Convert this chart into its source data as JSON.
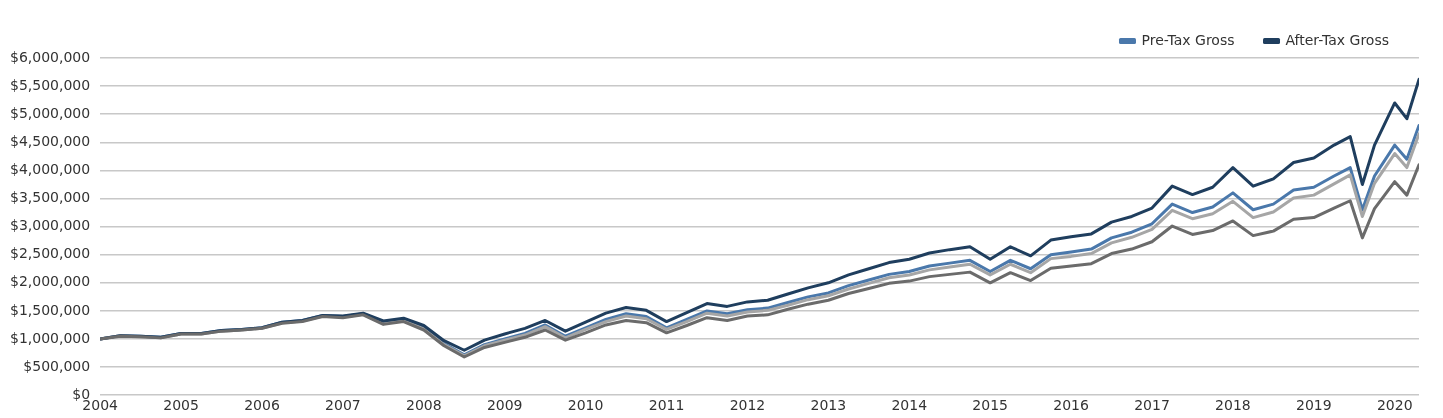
{
  "chart_data": {
    "type": "line",
    "x": [
      2004,
      2004.25,
      2004.5,
      2004.75,
      2005,
      2005.25,
      2005.5,
      2005.75,
      2006,
      2006.25,
      2006.5,
      2006.75,
      2007,
      2007.25,
      2007.5,
      2007.75,
      2008,
      2008.25,
      2008.5,
      2008.75,
      2009,
      2009.25,
      2009.5,
      2009.75,
      2010,
      2010.25,
      2010.5,
      2010.75,
      2011,
      2011.25,
      2011.5,
      2011.75,
      2012,
      2012.25,
      2012.5,
      2012.75,
      2013,
      2013.25,
      2013.5,
      2013.75,
      2014,
      2014.25,
      2014.5,
      2014.75,
      2015,
      2015.25,
      2015.5,
      2015.75,
      2016,
      2016.25,
      2016.5,
      2016.75,
      2017,
      2017.25,
      2017.5,
      2017.75,
      2018,
      2018.25,
      2018.5,
      2018.75,
      2019,
      2019.25,
      2019.45,
      2019.6,
      2019.75,
      2020,
      2020.15,
      2020.3
    ],
    "series": [
      {
        "name": "Pre-Tax Gross",
        "color": "#4a78ab",
        "values": [
          1000000,
          1060000,
          1050000,
          1030000,
          1100000,
          1100000,
          1150000,
          1170000,
          1200000,
          1300000,
          1330000,
          1420000,
          1400000,
          1450000,
          1300000,
          1350000,
          1200000,
          920000,
          720000,
          900000,
          1000000,
          1100000,
          1250000,
          1050000,
          1200000,
          1350000,
          1450000,
          1400000,
          1200000,
          1350000,
          1500000,
          1450000,
          1520000,
          1550000,
          1650000,
          1750000,
          1820000,
          1950000,
          2050000,
          2150000,
          2200000,
          2300000,
          2350000,
          2400000,
          2200000,
          2400000,
          2250000,
          2500000,
          2550000,
          2600000,
          2800000,
          2900000,
          3050000,
          3400000,
          3250000,
          3350000,
          3600000,
          3300000,
          3400000,
          3650000,
          3700000,
          3900000,
          4050000,
          3300000,
          3900000,
          4450000,
          4200000,
          4800000
        ]
      },
      {
        "color": "#a6a6a6",
        "values": [
          1000000,
          1060000,
          1040000,
          1020000,
          1090000,
          1090000,
          1140000,
          1160000,
          1190000,
          1290000,
          1320000,
          1410000,
          1390000,
          1440000,
          1280000,
          1330000,
          1180000,
          900000,
          700000,
          880000,
          980000,
          1070000,
          1220000,
          1020000,
          1170000,
          1310000,
          1410000,
          1360000,
          1170000,
          1310000,
          1460000,
          1410000,
          1480000,
          1510000,
          1600000,
          1700000,
          1770000,
          1890000,
          1990000,
          2090000,
          2140000,
          2230000,
          2280000,
          2330000,
          2140000,
          2330000,
          2180000,
          2430000,
          2470000,
          2520000,
          2710000,
          2810000,
          2950000,
          3290000,
          3140000,
          3230000,
          3450000,
          3160000,
          3260000,
          3510000,
          3560000,
          3760000,
          3920000,
          3180000,
          3770000,
          4300000,
          4050000,
          4650000
        ]
      },
      {
        "name": "After-Tax Gross",
        "color": "#1f3e5e",
        "values": [
          1000000,
          1060000,
          1050000,
          1030000,
          1100000,
          1100000,
          1150000,
          1170000,
          1200000,
          1300000,
          1330000,
          1420000,
          1410000,
          1460000,
          1320000,
          1370000,
          1240000,
          970000,
          800000,
          980000,
          1090000,
          1190000,
          1330000,
          1140000,
          1300000,
          1460000,
          1560000,
          1510000,
          1310000,
          1470000,
          1630000,
          1580000,
          1660000,
          1690000,
          1800000,
          1910000,
          2000000,
          2140000,
          2250000,
          2360000,
          2420000,
          2530000,
          2590000,
          2640000,
          2420000,
          2640000,
          2480000,
          2760000,
          2820000,
          2870000,
          3080000,
          3180000,
          3330000,
          3720000,
          3570000,
          3700000,
          4050000,
          3720000,
          3850000,
          4140000,
          4220000,
          4450000,
          4600000,
          3750000,
          4450000,
          5200000,
          4920000,
          5620000
        ]
      },
      {
        "color": "#6b6b6b",
        "values": [
          1000000,
          1050000,
          1040000,
          1020000,
          1090000,
          1090000,
          1140000,
          1160000,
          1190000,
          1280000,
          1310000,
          1400000,
          1380000,
          1430000,
          1260000,
          1310000,
          1160000,
          880000,
          680000,
          850000,
          940000,
          1030000,
          1160000,
          980000,
          1110000,
          1250000,
          1330000,
          1290000,
          1110000,
          1240000,
          1380000,
          1330000,
          1410000,
          1430000,
          1530000,
          1620000,
          1690000,
          1810000,
          1900000,
          1990000,
          2030000,
          2110000,
          2150000,
          2190000,
          2000000,
          2180000,
          2040000,
          2260000,
          2300000,
          2340000,
          2520000,
          2600000,
          2730000,
          3010000,
          2860000,
          2930000,
          3100000,
          2840000,
          2920000,
          3130000,
          3160000,
          3330000,
          3460000,
          2800000,
          3320000,
          3800000,
          3560000,
          4100000
        ]
      }
    ],
    "xlim": [
      2004,
      2020.3
    ],
    "xticks": [
      2004,
      2005,
      2006,
      2007,
      2008,
      2009,
      2010,
      2011,
      2012,
      2013,
      2014,
      2015,
      2016,
      2017,
      2018,
      2019,
      2020
    ],
    "ylim": [
      0,
      6000000
    ],
    "yticks": [
      {
        "value": 0,
        "label": "$0"
      },
      {
        "value": 500000,
        "label": "$500,000"
      },
      {
        "value": 1000000,
        "label": "$1,000,000"
      },
      {
        "value": 1500000,
        "label": "$1,500,000"
      },
      {
        "value": 2000000,
        "label": "$2,000,000"
      },
      {
        "value": 2500000,
        "label": "$2,500,000"
      },
      {
        "value": 3000000,
        "label": "$3,000,000"
      },
      {
        "value": 3500000,
        "label": "$3,500,000"
      },
      {
        "value": 4000000,
        "label": "$4,000,000"
      },
      {
        "value": 4500000,
        "label": "$4,500,000"
      },
      {
        "value": 5000000,
        "label": "$5,000,000"
      },
      {
        "value": 5500000,
        "label": "$5,500,000"
      },
      {
        "value": 6000000,
        "label": "$6,000,000"
      }
    ],
    "grid": "y",
    "legend": "top right",
    "marker": "none",
    "line_style": "solid"
  }
}
